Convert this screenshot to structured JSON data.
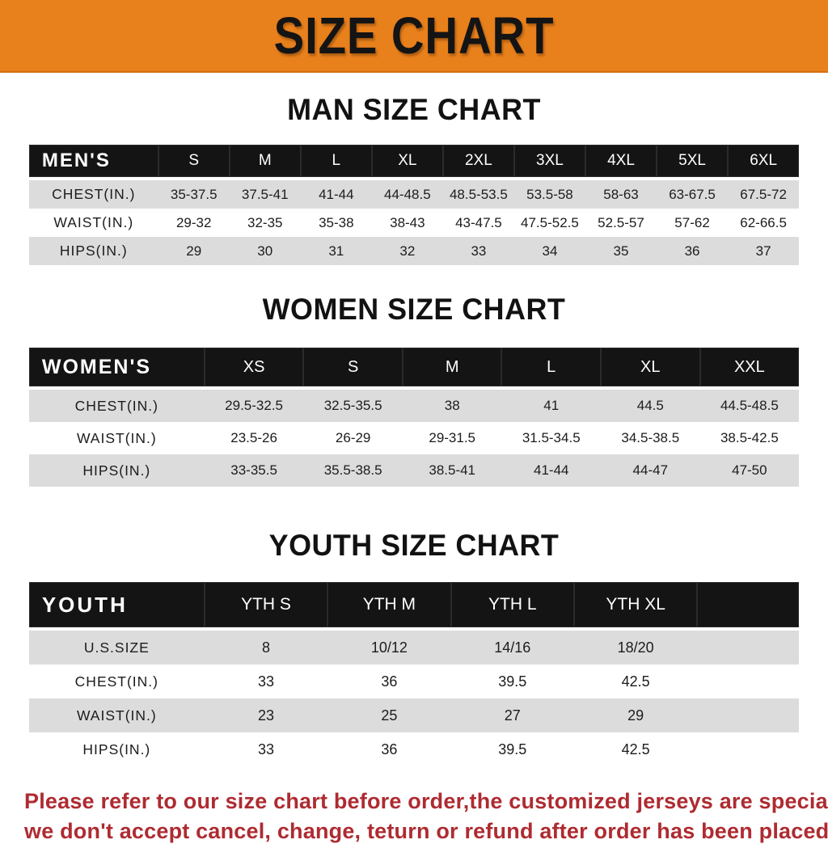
{
  "banner": {
    "title": "SIZE CHART",
    "bg_color": "#E8801C"
  },
  "sections": [
    {
      "heading": "MAN SIZE CHART",
      "table": {
        "header_label": "MEN'S",
        "sizes": [
          "S",
          "M",
          "L",
          "XL",
          "2XL",
          "3XL",
          "4XL",
          "5XL",
          "6XL"
        ],
        "rows": [
          {
            "label": "CHEST(IN.)",
            "values": [
              "35-37.5",
              "37.5-41",
              "41-44",
              "44-48.5",
              "48.5-53.5",
              "53.5-58",
              "58-63",
              "63-67.5",
              "67.5-72"
            ]
          },
          {
            "label": "WAIST(IN.)",
            "values": [
              "29-32",
              "32-35",
              "35-38",
              "38-43",
              "43-47.5",
              "47.5-52.5",
              "52.5-57",
              "57-62",
              "62-66.5"
            ]
          },
          {
            "label": "HIPS(IN.)",
            "values": [
              "29",
              "30",
              "31",
              "32",
              "33",
              "34",
              "35",
              "36",
              "37"
            ]
          }
        ]
      }
    },
    {
      "heading": "WOMEN SIZE CHART",
      "table": {
        "header_label": "WOMEN'S",
        "sizes": [
          "XS",
          "S",
          "M",
          "L",
          "XL",
          "XXL"
        ],
        "rows": [
          {
            "label": "CHEST(IN.)",
            "values": [
              "29.5-32.5",
              "32.5-35.5",
              "38",
              "41",
              "44.5",
              "44.5-48.5"
            ]
          },
          {
            "label": "WAIST(IN.)",
            "values": [
              "23.5-26",
              "26-29",
              "29-31.5",
              "31.5-34.5",
              "34.5-38.5",
              "38.5-42.5"
            ]
          },
          {
            "label": "HIPS(IN.)",
            "values": [
              "33-35.5",
              "35.5-38.5",
              "38.5-41",
              "41-44",
              "44-47",
              "47-50"
            ]
          }
        ]
      }
    },
    {
      "heading": "YOUTH SIZE CHART",
      "table": {
        "header_label": "YOUTH",
        "sizes": [
          "YTH S",
          "YTH M",
          "YTH L",
          "YTH XL"
        ],
        "rows": [
          {
            "label": "U.S.SIZE",
            "values": [
              "8",
              "10/12",
              "14/16",
              "18/20"
            ]
          },
          {
            "label": "CHEST(IN.)",
            "values": [
              "33",
              "36",
              "39.5",
              "42.5"
            ]
          },
          {
            "label": "WAIST(IN.)",
            "values": [
              "23",
              "25",
              "27",
              "29"
            ]
          },
          {
            "label": "HIPS(IN.)",
            "values": [
              "33",
              "36",
              "39.5",
              "42.5"
            ]
          }
        ]
      }
    }
  ],
  "footer_note": {
    "color": "#AE2B31",
    "lines": [
      "Please refer to our size chart before order,the customized jerseys are special products,",
      "we don't accept cancel, change, teturn or refund after order has been placed!"
    ]
  }
}
